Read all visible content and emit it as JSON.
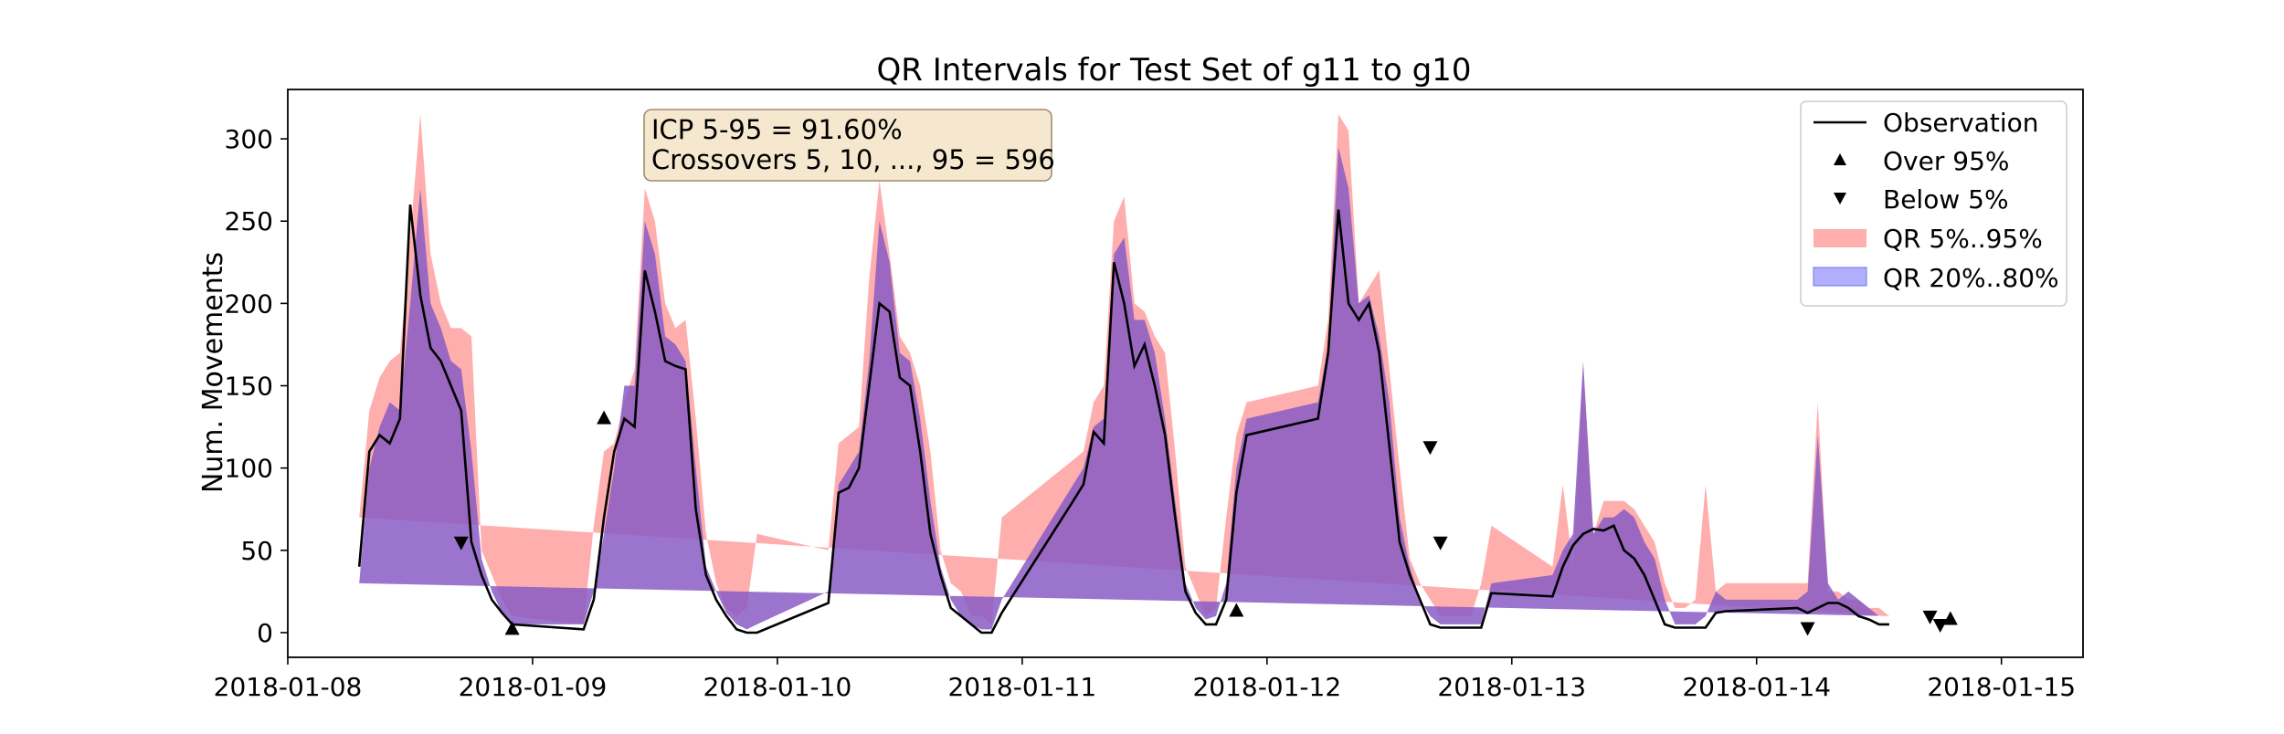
{
  "chart_data": {
    "type": "line",
    "title": "QR Intervals for Test Set of g11 to g10",
    "xlabel": "",
    "ylabel": "Num. Movements",
    "xlim": [
      "2018-01-08T00:00",
      "2018-01-15T08:00"
    ],
    "ylim": [
      -15,
      330
    ],
    "yticks": [
      0,
      50,
      100,
      150,
      200,
      250,
      300
    ],
    "xticks": [
      "2018-01-08",
      "2018-01-09",
      "2018-01-10",
      "2018-01-11",
      "2018-01-12",
      "2018-01-13",
      "2018-01-14",
      "2018-01-15"
    ],
    "grid": false,
    "legend_position": "top-right",
    "annotation_box": {
      "line1": "ICP 5-95 = 91.60%",
      "line2": "Crossovers 5, 10, ..., 95 = 596"
    },
    "legend": {
      "observation": "Observation",
      "over": "Over 95%",
      "below": "Below 5%",
      "qr_outer": "QR 5%..95%",
      "qr_inner": "QR 20%..80%"
    },
    "colors": {
      "observation": "#000000",
      "qr_outer": "#ff9a9a",
      "qr_inner": "#8a5cc4",
      "legend_inner_patch": "#b0b0ff"
    },
    "x": [
      "2018-01-08T07:00",
      "2018-01-08T08:00",
      "2018-01-08T09:00",
      "2018-01-08T10:00",
      "2018-01-08T11:00",
      "2018-01-08T12:00",
      "2018-01-08T13:00",
      "2018-01-08T14:00",
      "2018-01-08T15:00",
      "2018-01-08T16:00",
      "2018-01-08T17:00",
      "2018-01-08T18:00",
      "2018-01-08T19:00",
      "2018-01-08T20:00",
      "2018-01-08T21:00",
      "2018-01-08T22:00",
      "2018-01-09T05:00",
      "2018-01-09T06:00",
      "2018-01-09T07:00",
      "2018-01-09T08:00",
      "2018-01-09T09:00",
      "2018-01-09T10:00",
      "2018-01-09T11:00",
      "2018-01-09T12:00",
      "2018-01-09T13:00",
      "2018-01-09T14:00",
      "2018-01-09T15:00",
      "2018-01-09T16:00",
      "2018-01-09T17:00",
      "2018-01-09T18:00",
      "2018-01-09T19:00",
      "2018-01-09T20:00",
      "2018-01-09T21:00",
      "2018-01-09T22:00",
      "2018-01-10T05:00",
      "2018-01-10T06:00",
      "2018-01-10T07:00",
      "2018-01-10T08:00",
      "2018-01-10T09:00",
      "2018-01-10T10:00",
      "2018-01-10T11:00",
      "2018-01-10T12:00",
      "2018-01-10T13:00",
      "2018-01-10T14:00",
      "2018-01-10T15:00",
      "2018-01-10T16:00",
      "2018-01-10T17:00",
      "2018-01-10T18:00",
      "2018-01-10T19:00",
      "2018-01-10T20:00",
      "2018-01-10T21:00",
      "2018-01-10T22:00",
      "2018-01-11T05:00",
      "2018-01-11T06:00",
      "2018-01-11T07:00",
      "2018-01-11T08:00",
      "2018-01-11T09:00",
      "2018-01-11T10:00",
      "2018-01-11T11:00",
      "2018-01-11T12:00",
      "2018-01-11T13:00",
      "2018-01-11T14:00",
      "2018-01-11T15:00",
      "2018-01-11T16:00",
      "2018-01-11T17:00",
      "2018-01-11T18:00",
      "2018-01-11T19:00",
      "2018-01-11T20:00",
      "2018-01-11T21:00",
      "2018-01-11T22:00",
      "2018-01-12T05:00",
      "2018-01-12T06:00",
      "2018-01-12T07:00",
      "2018-01-12T08:00",
      "2018-01-12T09:00",
      "2018-01-12T10:00",
      "2018-01-12T11:00",
      "2018-01-12T12:00",
      "2018-01-12T13:00",
      "2018-01-12T14:00",
      "2018-01-12T15:00",
      "2018-01-12T16:00",
      "2018-01-12T17:00",
      "2018-01-12T18:00",
      "2018-01-12T19:00",
      "2018-01-12T20:00",
      "2018-01-12T21:00",
      "2018-01-12T22:00",
      "2018-01-13T04:00",
      "2018-01-13T05:00",
      "2018-01-13T06:00",
      "2018-01-13T07:00",
      "2018-01-13T08:00",
      "2018-01-13T09:00",
      "2018-01-13T10:00",
      "2018-01-13T11:00",
      "2018-01-13T12:00",
      "2018-01-13T13:00",
      "2018-01-13T14:00",
      "2018-01-13T15:00",
      "2018-01-13T16:00",
      "2018-01-13T17:00",
      "2018-01-13T18:00",
      "2018-01-13T19:00",
      "2018-01-13T20:00",
      "2018-01-13T21:00",
      "2018-01-14T04:00",
      "2018-01-14T05:00",
      "2018-01-14T06:00",
      "2018-01-14T07:00",
      "2018-01-14T08:00",
      "2018-01-14T09:00",
      "2018-01-14T10:00",
      "2018-01-14T11:00",
      "2018-01-14T12:00",
      "2018-01-14T13:00",
      "2018-01-14T14:00",
      "2018-01-14T15:00",
      "2018-01-14T16:00",
      "2018-01-14T17:00",
      "2018-01-14T18:00",
      "2018-01-14T19:00",
      "2018-01-14T20:00",
      "2018-01-14T21:00",
      "2018-01-14T22:00"
    ],
    "observation": [
      40,
      110,
      120,
      115,
      130,
      260,
      205,
      173,
      165,
      150,
      135,
      55,
      35,
      20,
      12,
      5,
      2,
      20,
      70,
      110,
      130,
      125,
      220,
      195,
      165,
      162,
      160,
      75,
      35,
      20,
      10,
      2,
      0,
      0,
      18,
      85,
      88,
      100,
      150,
      200,
      195,
      155,
      150,
      110,
      60,
      35,
      15,
      10,
      5,
      0,
      0,
      12,
      80,
      90,
      122,
      115,
      225,
      200,
      162,
      175,
      150,
      120,
      70,
      25,
      12,
      5,
      5,
      20,
      85,
      120,
      130,
      170,
      257,
      200,
      190,
      200,
      170,
      113,
      55,
      35,
      20,
      5,
      3,
      3,
      3,
      3,
      3,
      24,
      22,
      40,
      53,
      60,
      63,
      62,
      65,
      50,
      45,
      35,
      20,
      5,
      3,
      3,
      3,
      3,
      12,
      13,
      15,
      12,
      15,
      18,
      18,
      15,
      10,
      8,
      5,
      5
    ],
    "q05": [
      5,
      25,
      60,
      80,
      85,
      90,
      140,
      125,
      90,
      110,
      80,
      45,
      25,
      10,
      2,
      0,
      0,
      10,
      30,
      80,
      95,
      120,
      150,
      120,
      140,
      130,
      100,
      40,
      10,
      2,
      0,
      0,
      0,
      0,
      5,
      60,
      70,
      80,
      100,
      130,
      150,
      110,
      90,
      70,
      40,
      15,
      2,
      0,
      0,
      0,
      0,
      5,
      60,
      70,
      95,
      100,
      150,
      165,
      140,
      150,
      120,
      100,
      50,
      10,
      2,
      0,
      0,
      5,
      60,
      100,
      110,
      150,
      210,
      175,
      130,
      150,
      140,
      80,
      30,
      10,
      2,
      0,
      0,
      0,
      0,
      0,
      0,
      5,
      10,
      20,
      30,
      20,
      5,
      35,
      10,
      20,
      30,
      20,
      15,
      2,
      0,
      0,
      0,
      0,
      0,
      5,
      3,
      0,
      5,
      5,
      5,
      5,
      5,
      3,
      2,
      2
    ],
    "q20": [
      10,
      40,
      80,
      100,
      110,
      120,
      185,
      155,
      140,
      150,
      120,
      60,
      30,
      15,
      5,
      2,
      0,
      15,
      50,
      95,
      110,
      130,
      175,
      155,
      155,
      150,
      140,
      60,
      25,
      10,
      3,
      0,
      0,
      0,
      10,
      75,
      80,
      90,
      130,
      175,
      170,
      140,
      140,
      100,
      50,
      25,
      5,
      2,
      0,
      0,
      0,
      10,
      70,
      80,
      110,
      110,
      180,
      185,
      150,
      165,
      135,
      110,
      60,
      20,
      5,
      2,
      2,
      10,
      70,
      110,
      120,
      160,
      240,
      195,
      165,
      185,
      160,
      100,
      45,
      25,
      8,
      2,
      0,
      0,
      0,
      0,
      0,
      15,
      15,
      30,
      40,
      35,
      30,
      50,
      40,
      40,
      40,
      30,
      20,
      5,
      2,
      0,
      0,
      0,
      2,
      10,
      8,
      3,
      10,
      10,
      10,
      10,
      8,
      5,
      3,
      3
    ],
    "q80": [
      30,
      100,
      125,
      140,
      135,
      200,
      270,
      200,
      185,
      165,
      160,
      110,
      45,
      25,
      12,
      5,
      5,
      25,
      60,
      100,
      150,
      150,
      250,
      230,
      180,
      175,
      165,
      100,
      40,
      25,
      12,
      5,
      2,
      5,
      25,
      90,
      100,
      110,
      165,
      250,
      225,
      170,
      165,
      130,
      80,
      40,
      20,
      10,
      5,
      2,
      2,
      20,
      90,
      100,
      125,
      130,
      230,
      240,
      190,
      190,
      170,
      130,
      80,
      30,
      15,
      8,
      10,
      30,
      100,
      130,
      140,
      175,
      295,
      270,
      200,
      205,
      180,
      140,
      70,
      40,
      20,
      10,
      5,
      5,
      5,
      5,
      5,
      30,
      35,
      50,
      60,
      165,
      60,
      70,
      70,
      75,
      70,
      55,
      45,
      20,
      5,
      5,
      5,
      10,
      25,
      20,
      20,
      25,
      120,
      30,
      20,
      25,
      20,
      15,
      10,
      10
    ],
    "q95": [
      70,
      135,
      155,
      165,
      170,
      240,
      315,
      230,
      200,
      185,
      185,
      180,
      50,
      35,
      20,
      10,
      5,
      65,
      110,
      115,
      140,
      160,
      270,
      250,
      200,
      185,
      190,
      130,
      60,
      30,
      15,
      10,
      15,
      60,
      50,
      115,
      120,
      125,
      215,
      275,
      230,
      180,
      170,
      150,
      110,
      50,
      30,
      25,
      10,
      10,
      5,
      70,
      105,
      110,
      140,
      150,
      250,
      265,
      200,
      195,
      180,
      170,
      110,
      40,
      25,
      10,
      15,
      70,
      120,
      140,
      150,
      190,
      315,
      305,
      200,
      210,
      220,
      160,
      100,
      45,
      30,
      20,
      10,
      10,
      10,
      10,
      30,
      65,
      40,
      90,
      40,
      160,
      60,
      80,
      80,
      80,
      75,
      65,
      55,
      30,
      15,
      15,
      20,
      90,
      25,
      30,
      30,
      30,
      140,
      25,
      25,
      20,
      20,
      15,
      15,
      10
    ],
    "over_95": [
      {
        "x": "2018-01-08T22:00",
        "y": 2
      },
      {
        "x": "2018-01-09T07:00",
        "y": 130
      },
      {
        "x": "2018-01-11T21:00",
        "y": 13
      },
      {
        "x": "2018-01-14T19:00",
        "y": 8
      }
    ],
    "below_5": [
      {
        "x": "2018-01-08T17:00",
        "y": 55
      },
      {
        "x": "2018-01-12T16:00",
        "y": 113
      },
      {
        "x": "2018-01-12T17:00",
        "y": 55
      },
      {
        "x": "2018-01-14T05:00",
        "y": 3
      },
      {
        "x": "2018-01-14T17:00",
        "y": 10
      },
      {
        "x": "2018-01-14T18:00",
        "y": 5
      }
    ]
  }
}
